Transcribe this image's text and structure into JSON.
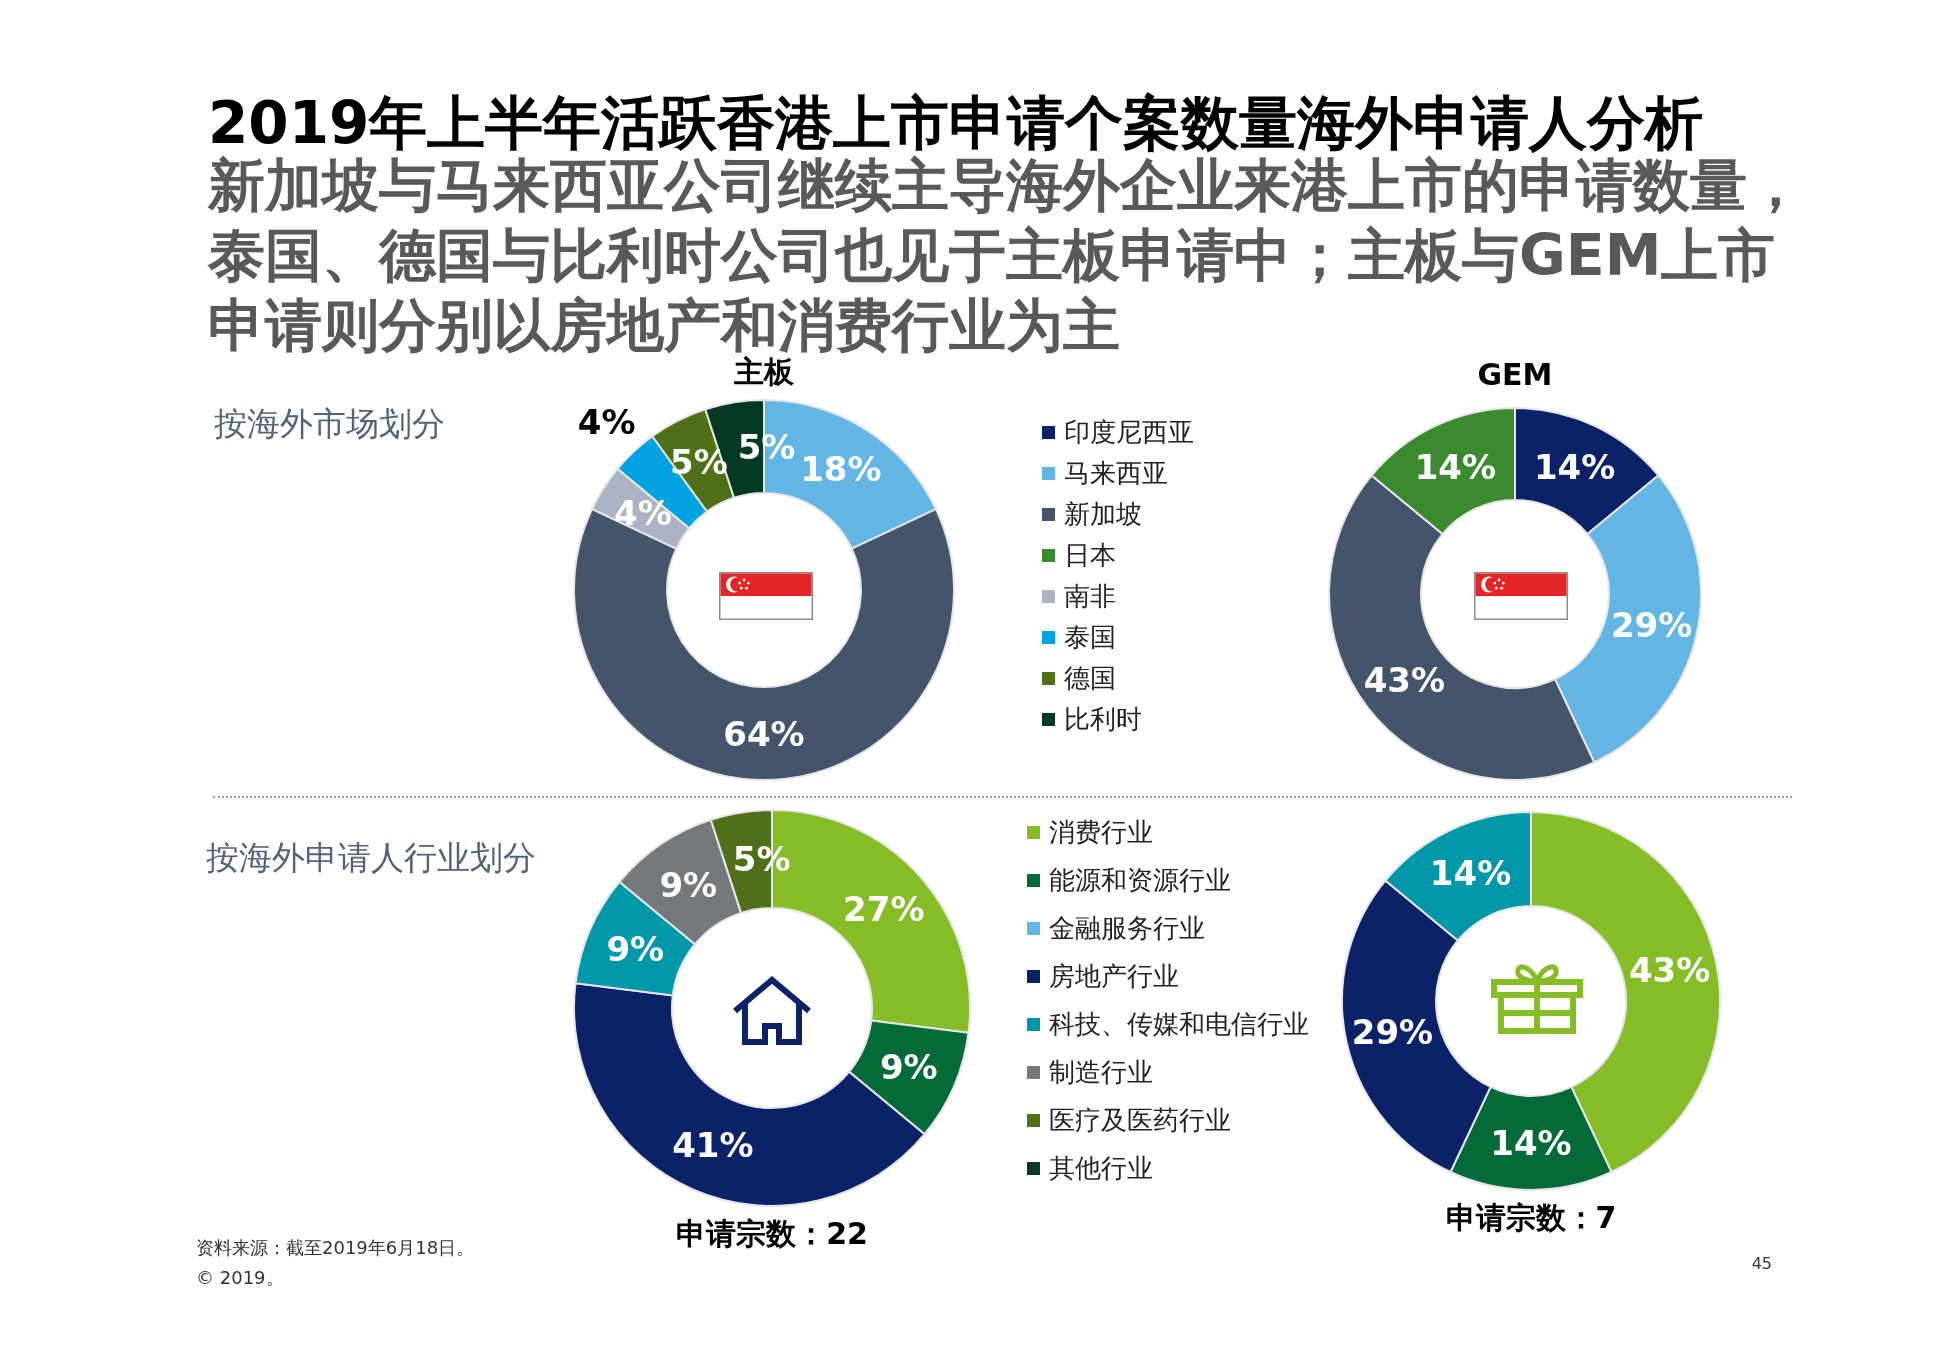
{
  "chart_data": [
    {
      "type": "other",
      "title": "2019年上半年活跃香港上市申请个案数量海外申请人分析",
      "subtitle": "新加坡与马来西亚公司继续主导海外企业来港上市的申请数量，泰国、德国与比利时公司也见于主板申请中；主板与GEM上市申请则分别以房地产和消费行业为主",
      "annotations": [
        "资料来源：截至2019年6月18日。",
        "© 2019。",
        "45"
      ]
    },
    {
      "type": "donut",
      "title": "主板",
      "subtitle": "按海外市场划分",
      "categories": [
        "印度尼西亚",
        "马来西亚",
        "新加坡",
        "日本",
        "南非",
        "泰国",
        "德国",
        "比利时"
      ],
      "values": [
        0,
        18,
        64,
        0,
        4,
        4,
        5,
        5
      ],
      "value_labels": [
        null,
        "18%",
        "64%",
        null,
        "4%",
        "4%",
        "5%",
        "5%"
      ],
      "colors": [
        "#0c2268",
        "#62b5e5",
        "#44546a",
        "#3b8a30",
        "#a9b3c3",
        "#00a3e0",
        "#4f6f19",
        "#043a24"
      ],
      "legend": "right"
    },
    {
      "type": "donut",
      "title": "GEM",
      "categories": [
        null,
        null,
        null,
        null
      ],
      "values": [
        14,
        29,
        43,
        14
      ],
      "value_labels": [
        "14%",
        "29%",
        "43%",
        "14%"
      ],
      "colors": [
        "#0c2268",
        "#62b5e5",
        "#44546a",
        "#3b8a30"
      ]
    },
    {
      "type": "donut",
      "subtitle": "按海外申请人行业划分",
      "categories": [
        "消费行业",
        "能源和资源行业",
        "金融服务行业",
        "房地产行业",
        "科技、传媒和电信行业",
        "制造行业",
        "医疗及医药行业",
        "其他行业"
      ],
      "values": [
        27,
        9,
        0,
        41,
        9,
        9,
        5,
        0
      ],
      "value_labels": [
        "27%",
        "9%",
        null,
        "41%",
        "9%",
        "9%",
        "5%",
        null
      ],
      "colors": [
        "#86bc25",
        "#046a38",
        "#62b5e5",
        "#0c2268",
        "#0097a9",
        "#75787b",
        "#4f6f19",
        "#043927"
      ],
      "legend": "right",
      "annotations": [
        "申请宗数：22"
      ]
    },
    {
      "type": "donut",
      "categories": [
        null,
        null,
        null,
        null
      ],
      "values": [
        43,
        14,
        29,
        14
      ],
      "value_labels": [
        "43%",
        "14%",
        "29%",
        "14%"
      ],
      "colors": [
        "#86bc25",
        "#046a38",
        "#0c2268",
        "#0097a9"
      ],
      "annotations": [
        "申请宗数：7"
      ]
    }
  ]
}
